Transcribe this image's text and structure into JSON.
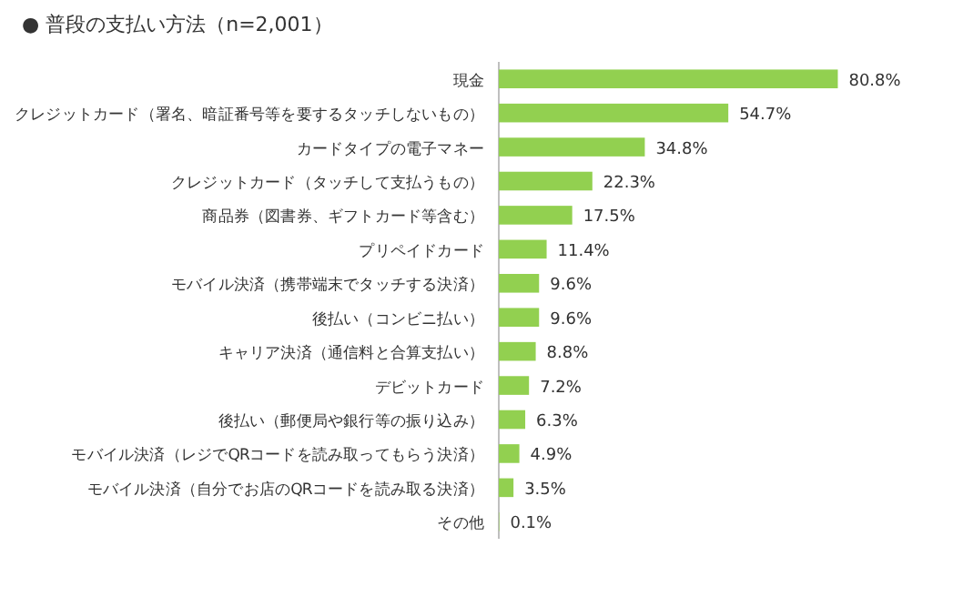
{
  "chart_data": {
    "type": "bar",
    "orientation": "horizontal",
    "title": "● 普段の支払い方法（n=2,001）",
    "categories": [
      "現金",
      "クレジットカード（署名、暗証番号等を要するタッチしないもの）",
      "カードタイプの電子マネー",
      "クレジットカード（タッチして支払うもの）",
      "商品券（図書券、ギフトカード等含む）",
      "プリペイドカード",
      "モバイル決済（携帯端末でタッチする決済）",
      "後払い（コンビニ払い）",
      "キャリア決済（通信料と合算支払い）",
      "デビットカード",
      "後払い（郵便局や銀行等の振り込み）",
      "モバイル決済（レジでQRコードを読み取ってもらう決済）",
      "モバイル決済（自分でお店のQRコードを読み取る決済）",
      "その他"
    ],
    "values": [
      80.8,
      54.7,
      34.8,
      22.3,
      17.5,
      11.4,
      9.6,
      9.6,
      8.8,
      7.2,
      6.3,
      4.9,
      3.5,
      0.1
    ],
    "value_labels": [
      "80.8%",
      "54.7%",
      "34.8%",
      "22.3%",
      "17.5%",
      "11.4%",
      "9.6%",
      "9.6%",
      "8.8%",
      "7.2%",
      "6.3%",
      "4.9%",
      "3.5%",
      "0.1%"
    ],
    "color": "#92d050"
  }
}
